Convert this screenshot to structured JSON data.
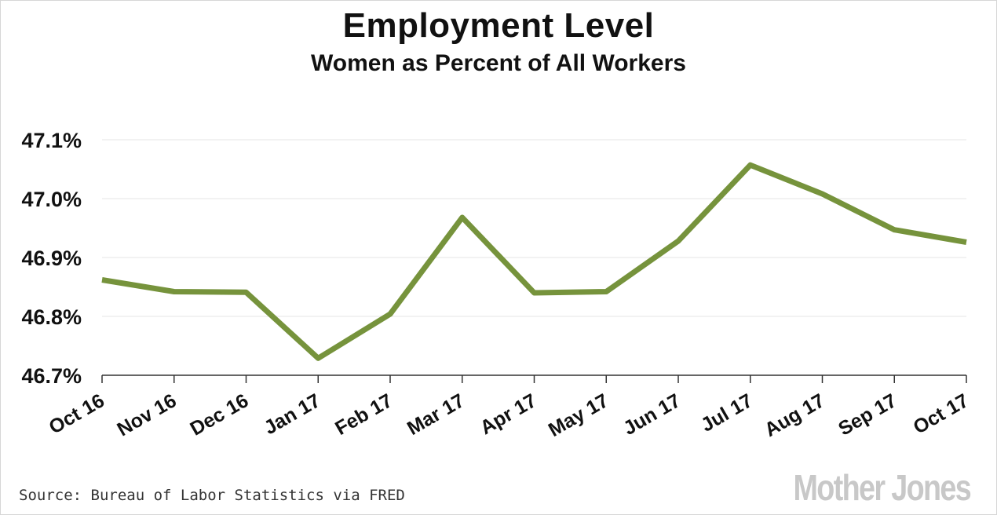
{
  "colors": {
    "line": "#76933c",
    "grid": "#e6e6e6",
    "axis": "#333333",
    "text": "#111111"
  },
  "chart_data": {
    "type": "line",
    "title": "Employment Level",
    "subtitle": "Women as Percent of All Workers",
    "xlabel": "",
    "ylabel": "",
    "categories": [
      "Oct 16",
      "Nov 16",
      "Dec 16",
      "Jan 17",
      "Feb 17",
      "Mar 17",
      "Apr 17",
      "May 17",
      "Jun 17",
      "Jul 17",
      "Aug 17",
      "Sep 17",
      "Oct 17"
    ],
    "series": [
      {
        "name": "",
        "values": [
          46.862,
          46.842,
          46.841,
          46.729,
          46.804,
          46.968,
          46.84,
          46.842,
          46.928,
          47.057,
          47.008,
          46.947,
          46.926
        ]
      }
    ],
    "ylim": [
      46.7,
      47.1
    ],
    "yticks": [
      47.1,
      47.0,
      46.9,
      46.8,
      46.7
    ],
    "ytick_labels": [
      "47.1%",
      "47.0%",
      "46.9%",
      "46.8%",
      "46.7%"
    ],
    "grid": true,
    "legend": "none"
  },
  "source": "Source: Bureau of Labor Statistics via FRED",
  "logo_text": "Mother Jones"
}
